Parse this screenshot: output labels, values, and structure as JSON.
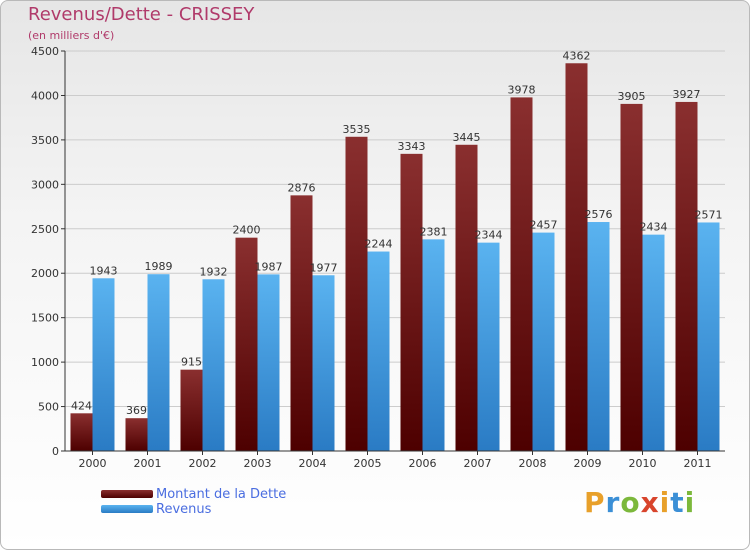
{
  "title": "Revenus/Dette - CRISSEY",
  "subtitle": "(en milliers d'€)",
  "logo": {
    "letters": [
      "P",
      "r",
      "o",
      "x",
      "i",
      "t",
      "i"
    ],
    "colors": [
      "#e8a02a",
      "#3b8fd6",
      "#7cb83b",
      "#d8442c",
      "#e8a02a",
      "#3b8fd6",
      "#7cb83b"
    ]
  },
  "colors": {
    "dette_top": "#8a2f2f",
    "dette_bottom": "#4d0000",
    "revenus_top": "#5ab3f0",
    "revenus_bottom": "#2a7bc4",
    "axis": "#333333",
    "grid": "#cccccc"
  },
  "chart_data": {
    "type": "bar",
    "categories": [
      "2000",
      "2001",
      "2002",
      "2003",
      "2004",
      "2005",
      "2006",
      "2007",
      "2008",
      "2009",
      "2010",
      "2011"
    ],
    "series": [
      {
        "name": "Montant de la Dette",
        "values": [
          424,
          369,
          915,
          2400,
          2876,
          3535,
          3343,
          3445,
          3978,
          4362,
          3905,
          3927
        ]
      },
      {
        "name": "Revenus",
        "values": [
          1943,
          1989,
          1932,
          1987,
          1977,
          2244,
          2381,
          2344,
          2457,
          2576,
          2434,
          2571
        ]
      }
    ],
    "yticks": [
      "0",
      "500",
      "1000",
      "1500",
      "2000",
      "2500",
      "3000",
      "3500",
      "4000",
      "4500"
    ],
    "ylim": [
      0,
      4500
    ],
    "grid": true,
    "legend_position": "bottom-left"
  }
}
